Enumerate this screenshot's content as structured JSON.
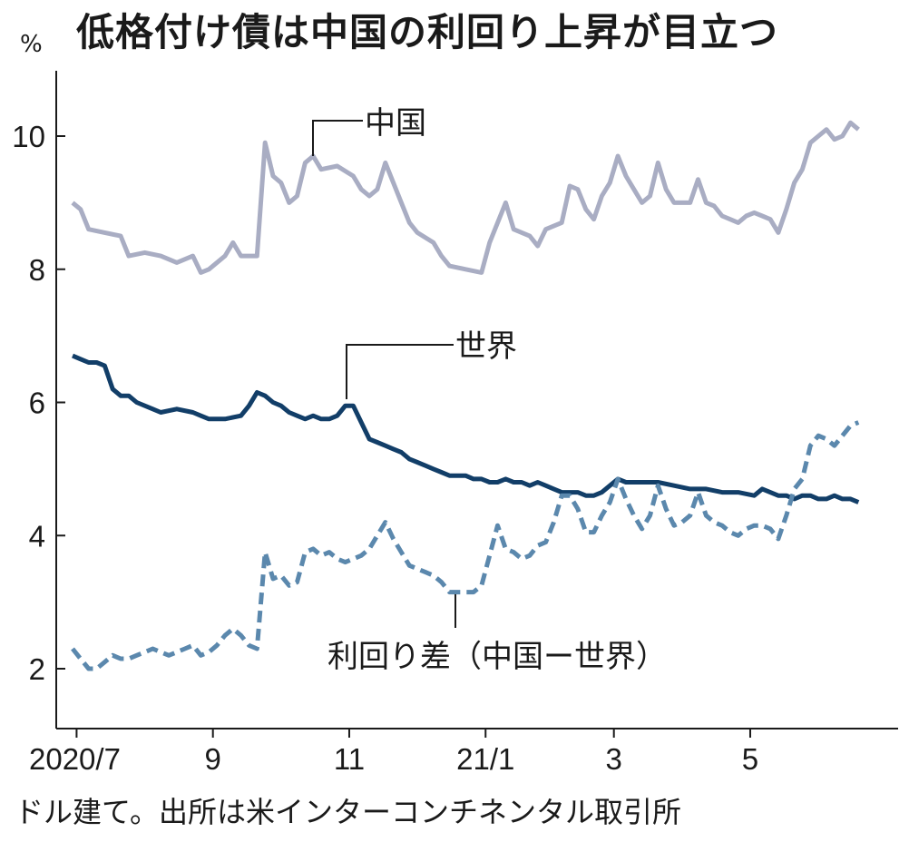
{
  "chart_data": {
    "type": "line",
    "title": "低格付け債は中国の利回り上昇が目立つ",
    "ylabel": "%",
    "source": "ドル建て。出所は米インターコンチネンタル取引所",
    "ylim": [
      1.0,
      11.0
    ],
    "yticks": [
      {
        "value": 2,
        "label": "2"
      },
      {
        "value": 4,
        "label": "4"
      },
      {
        "value": 6,
        "label": "6"
      },
      {
        "value": 8,
        "label": "8"
      },
      {
        "value": 10,
        "label": "10"
      }
    ],
    "xlim": [
      0,
      1
    ],
    "xticks": [
      {
        "pos": 0.005,
        "label": "2020/7"
      },
      {
        "pos": 0.175,
        "label": "9"
      },
      {
        "pos": 0.345,
        "label": "11"
      },
      {
        "pos": 0.515,
        "label": "21/1"
      },
      {
        "pos": 0.675,
        "label": "3"
      },
      {
        "pos": 0.845,
        "label": "5"
      }
    ],
    "series": [
      {
        "name": "中国",
        "color": "#a9adc3",
        "dash": "solid",
        "points": [
          [
            0.0,
            9.0
          ],
          [
            0.01,
            8.9
          ],
          [
            0.02,
            8.6
          ],
          [
            0.04,
            8.55
          ],
          [
            0.06,
            8.5
          ],
          [
            0.07,
            8.2
          ],
          [
            0.09,
            8.25
          ],
          [
            0.11,
            8.2
          ],
          [
            0.13,
            8.1
          ],
          [
            0.15,
            8.2
          ],
          [
            0.16,
            7.95
          ],
          [
            0.17,
            8.0
          ],
          [
            0.19,
            8.2
          ],
          [
            0.2,
            8.4
          ],
          [
            0.21,
            8.2
          ],
          [
            0.23,
            8.2
          ],
          [
            0.24,
            9.9
          ],
          [
            0.25,
            9.4
          ],
          [
            0.26,
            9.3
          ],
          [
            0.27,
            9.0
          ],
          [
            0.28,
            9.1
          ],
          [
            0.29,
            9.6
          ],
          [
            0.3,
            9.7
          ],
          [
            0.31,
            9.5
          ],
          [
            0.33,
            9.55
          ],
          [
            0.35,
            9.4
          ],
          [
            0.36,
            9.2
          ],
          [
            0.37,
            9.1
          ],
          [
            0.38,
            9.2
          ],
          [
            0.39,
            9.6
          ],
          [
            0.4,
            9.3
          ],
          [
            0.41,
            9.0
          ],
          [
            0.42,
            8.7
          ],
          [
            0.43,
            8.55
          ],
          [
            0.45,
            8.4
          ],
          [
            0.46,
            8.2
          ],
          [
            0.47,
            8.05
          ],
          [
            0.49,
            8.0
          ],
          [
            0.51,
            7.95
          ],
          [
            0.52,
            8.4
          ],
          [
            0.54,
            9.0
          ],
          [
            0.55,
            8.6
          ],
          [
            0.57,
            8.5
          ],
          [
            0.58,
            8.35
          ],
          [
            0.59,
            8.6
          ],
          [
            0.61,
            8.7
          ],
          [
            0.62,
            9.25
          ],
          [
            0.63,
            9.2
          ],
          [
            0.64,
            8.9
          ],
          [
            0.65,
            8.75
          ],
          [
            0.66,
            9.1
          ],
          [
            0.67,
            9.3
          ],
          [
            0.68,
            9.7
          ],
          [
            0.69,
            9.4
          ],
          [
            0.7,
            9.2
          ],
          [
            0.71,
            9.0
          ],
          [
            0.72,
            9.1
          ],
          [
            0.73,
            9.6
          ],
          [
            0.74,
            9.2
          ],
          [
            0.75,
            9.0
          ],
          [
            0.77,
            9.0
          ],
          [
            0.78,
            9.35
          ],
          [
            0.79,
            9.0
          ],
          [
            0.8,
            8.95
          ],
          [
            0.81,
            8.8
          ],
          [
            0.82,
            8.75
          ],
          [
            0.83,
            8.7
          ],
          [
            0.84,
            8.8
          ],
          [
            0.85,
            8.85
          ],
          [
            0.86,
            8.8
          ],
          [
            0.87,
            8.75
          ],
          [
            0.88,
            8.55
          ],
          [
            0.89,
            8.9
          ],
          [
            0.9,
            9.3
          ],
          [
            0.91,
            9.5
          ],
          [
            0.92,
            9.9
          ],
          [
            0.93,
            10.0
          ],
          [
            0.94,
            10.1
          ],
          [
            0.95,
            9.95
          ],
          [
            0.96,
            10.0
          ],
          [
            0.97,
            10.2
          ],
          [
            0.98,
            10.1
          ]
        ]
      },
      {
        "name": "世界",
        "color": "#123e68",
        "dash": "solid",
        "points": [
          [
            0.0,
            6.7
          ],
          [
            0.01,
            6.65
          ],
          [
            0.02,
            6.6
          ],
          [
            0.03,
            6.6
          ],
          [
            0.04,
            6.55
          ],
          [
            0.05,
            6.2
          ],
          [
            0.06,
            6.1
          ],
          [
            0.07,
            6.1
          ],
          [
            0.08,
            6.0
          ],
          [
            0.1,
            5.9
          ],
          [
            0.11,
            5.85
          ],
          [
            0.13,
            5.9
          ],
          [
            0.15,
            5.85
          ],
          [
            0.16,
            5.8
          ],
          [
            0.17,
            5.75
          ],
          [
            0.19,
            5.75
          ],
          [
            0.21,
            5.8
          ],
          [
            0.22,
            5.95
          ],
          [
            0.23,
            6.15
          ],
          [
            0.24,
            6.1
          ],
          [
            0.25,
            6.0
          ],
          [
            0.26,
            5.95
          ],
          [
            0.27,
            5.85
          ],
          [
            0.28,
            5.8
          ],
          [
            0.29,
            5.75
          ],
          [
            0.3,
            5.8
          ],
          [
            0.31,
            5.75
          ],
          [
            0.32,
            5.75
          ],
          [
            0.33,
            5.8
          ],
          [
            0.34,
            5.95
          ],
          [
            0.35,
            5.95
          ],
          [
            0.36,
            5.7
          ],
          [
            0.37,
            5.45
          ],
          [
            0.38,
            5.4
          ],
          [
            0.39,
            5.35
          ],
          [
            0.4,
            5.3
          ],
          [
            0.41,
            5.25
          ],
          [
            0.42,
            5.15
          ],
          [
            0.43,
            5.1
          ],
          [
            0.44,
            5.05
          ],
          [
            0.45,
            5.0
          ],
          [
            0.46,
            4.95
          ],
          [
            0.47,
            4.9
          ],
          [
            0.48,
            4.9
          ],
          [
            0.49,
            4.9
          ],
          [
            0.5,
            4.85
          ],
          [
            0.51,
            4.85
          ],
          [
            0.52,
            4.8
          ],
          [
            0.53,
            4.8
          ],
          [
            0.54,
            4.85
          ],
          [
            0.55,
            4.8
          ],
          [
            0.56,
            4.8
          ],
          [
            0.57,
            4.75
          ],
          [
            0.58,
            4.8
          ],
          [
            0.59,
            4.75
          ],
          [
            0.6,
            4.7
          ],
          [
            0.61,
            4.65
          ],
          [
            0.62,
            4.65
          ],
          [
            0.63,
            4.65
          ],
          [
            0.64,
            4.6
          ],
          [
            0.65,
            4.6
          ],
          [
            0.66,
            4.65
          ],
          [
            0.67,
            4.75
          ],
          [
            0.68,
            4.85
          ],
          [
            0.69,
            4.8
          ],
          [
            0.7,
            4.8
          ],
          [
            0.71,
            4.8
          ],
          [
            0.73,
            4.8
          ],
          [
            0.75,
            4.75
          ],
          [
            0.77,
            4.7
          ],
          [
            0.79,
            4.7
          ],
          [
            0.81,
            4.65
          ],
          [
            0.83,
            4.65
          ],
          [
            0.85,
            4.6
          ],
          [
            0.86,
            4.7
          ],
          [
            0.87,
            4.65
          ],
          [
            0.88,
            4.6
          ],
          [
            0.89,
            4.6
          ],
          [
            0.9,
            4.55
          ],
          [
            0.91,
            4.6
          ],
          [
            0.92,
            4.6
          ],
          [
            0.93,
            4.55
          ],
          [
            0.94,
            4.55
          ],
          [
            0.95,
            4.6
          ],
          [
            0.96,
            4.55
          ],
          [
            0.97,
            4.55
          ],
          [
            0.98,
            4.5
          ]
        ]
      },
      {
        "name": "利回り差（中国ー世界）",
        "color": "#5b88ad",
        "dash": "dashed",
        "points": [
          [
            0.0,
            2.3
          ],
          [
            0.01,
            2.15
          ],
          [
            0.02,
            2.0
          ],
          [
            0.03,
            2.0
          ],
          [
            0.04,
            2.1
          ],
          [
            0.05,
            2.2
          ],
          [
            0.06,
            2.15
          ],
          [
            0.07,
            2.15
          ],
          [
            0.08,
            2.2
          ],
          [
            0.09,
            2.25
          ],
          [
            0.1,
            2.3
          ],
          [
            0.11,
            2.25
          ],
          [
            0.12,
            2.2
          ],
          [
            0.13,
            2.25
          ],
          [
            0.14,
            2.3
          ],
          [
            0.15,
            2.35
          ],
          [
            0.16,
            2.2
          ],
          [
            0.17,
            2.25
          ],
          [
            0.18,
            2.35
          ],
          [
            0.19,
            2.5
          ],
          [
            0.2,
            2.6
          ],
          [
            0.21,
            2.5
          ],
          [
            0.22,
            2.35
          ],
          [
            0.23,
            2.3
          ],
          [
            0.24,
            3.75
          ],
          [
            0.25,
            3.35
          ],
          [
            0.26,
            3.4
          ],
          [
            0.27,
            3.25
          ],
          [
            0.28,
            3.3
          ],
          [
            0.29,
            3.75
          ],
          [
            0.3,
            3.8
          ],
          [
            0.31,
            3.7
          ],
          [
            0.32,
            3.75
          ],
          [
            0.33,
            3.65
          ],
          [
            0.34,
            3.6
          ],
          [
            0.35,
            3.65
          ],
          [
            0.36,
            3.7
          ],
          [
            0.37,
            3.8
          ],
          [
            0.38,
            4.0
          ],
          [
            0.39,
            4.2
          ],
          [
            0.4,
            3.95
          ],
          [
            0.41,
            3.75
          ],
          [
            0.42,
            3.55
          ],
          [
            0.43,
            3.5
          ],
          [
            0.44,
            3.45
          ],
          [
            0.45,
            3.4
          ],
          [
            0.46,
            3.3
          ],
          [
            0.47,
            3.15
          ],
          [
            0.48,
            3.15
          ],
          [
            0.49,
            3.15
          ],
          [
            0.5,
            3.15
          ],
          [
            0.51,
            3.25
          ],
          [
            0.52,
            3.7
          ],
          [
            0.53,
            4.15
          ],
          [
            0.54,
            3.8
          ],
          [
            0.55,
            3.75
          ],
          [
            0.56,
            3.65
          ],
          [
            0.57,
            3.7
          ],
          [
            0.58,
            3.85
          ],
          [
            0.59,
            3.9
          ],
          [
            0.6,
            4.2
          ],
          [
            0.61,
            4.6
          ],
          [
            0.62,
            4.6
          ],
          [
            0.63,
            4.4
          ],
          [
            0.64,
            4.05
          ],
          [
            0.65,
            4.05
          ],
          [
            0.66,
            4.3
          ],
          [
            0.67,
            4.5
          ],
          [
            0.68,
            4.85
          ],
          [
            0.69,
            4.55
          ],
          [
            0.7,
            4.3
          ],
          [
            0.71,
            4.1
          ],
          [
            0.72,
            4.3
          ],
          [
            0.73,
            4.75
          ],
          [
            0.74,
            4.4
          ],
          [
            0.75,
            4.15
          ],
          [
            0.76,
            4.2
          ],
          [
            0.77,
            4.3
          ],
          [
            0.78,
            4.65
          ],
          [
            0.79,
            4.3
          ],
          [
            0.8,
            4.2
          ],
          [
            0.81,
            4.15
          ],
          [
            0.82,
            4.05
          ],
          [
            0.83,
            4.0
          ],
          [
            0.84,
            4.1
          ],
          [
            0.85,
            4.15
          ],
          [
            0.86,
            4.15
          ],
          [
            0.87,
            4.1
          ],
          [
            0.88,
            3.95
          ],
          [
            0.89,
            4.3
          ],
          [
            0.9,
            4.7
          ],
          [
            0.91,
            4.85
          ],
          [
            0.92,
            5.35
          ],
          [
            0.93,
            5.5
          ],
          [
            0.94,
            5.45
          ],
          [
            0.95,
            5.35
          ],
          [
            0.96,
            5.5
          ],
          [
            0.97,
            5.65
          ],
          [
            0.98,
            5.7
          ]
        ]
      }
    ],
    "annotations": [
      {
        "series": 0,
        "text": "中国"
      },
      {
        "series": 1,
        "text": "世界"
      },
      {
        "series": 2,
        "text": "利回り差（中国ー世界）"
      }
    ]
  }
}
